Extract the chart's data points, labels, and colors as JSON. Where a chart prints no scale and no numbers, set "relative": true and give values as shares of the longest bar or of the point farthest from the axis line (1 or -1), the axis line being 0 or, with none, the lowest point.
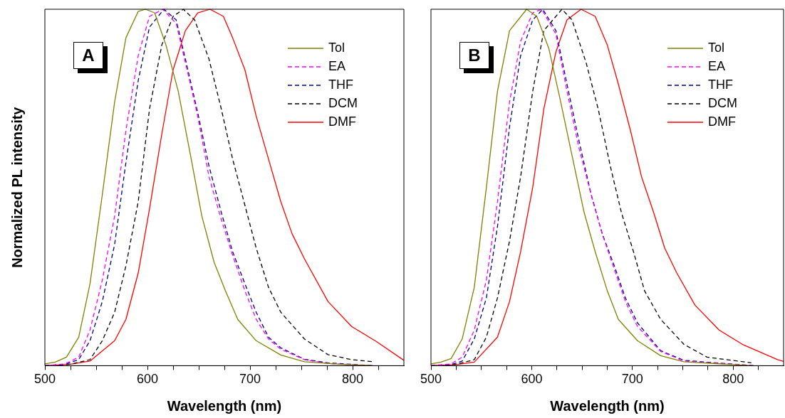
{
  "chart_data": [
    {
      "type": "line",
      "xlabel": "Wavelength (nm)",
      "ylabel": "Normalized PL intensity",
      "relative": true,
      "xlim": [
        500,
        850
      ],
      "xticks": [
        500,
        {
          "value": 525,
          "label": null
        },
        {
          "value": 550,
          "label": null
        },
        {
          "value": 575,
          "label": null
        },
        600,
        {
          "value": 625,
          "label": null
        },
        {
          "value": 650,
          "label": null
        },
        {
          "value": 675,
          "label": null
        },
        700,
        {
          "value": 725,
          "label": null
        },
        {
          "value": 750,
          "label": null
        },
        {
          "value": 775,
          "label": null
        },
        800,
        {
          "value": 825,
          "label": null
        }
      ],
      "grid": false,
      "legend": "top right",
      "marker": "none",
      "tick_labels": "x",
      "annotations": [
        "A"
      ],
      "series": [
        {
          "name": "Tol",
          "color": "#808000",
          "line_style": "solid",
          "x": [
            500,
            510,
            521,
            533,
            544,
            556,
            568,
            579,
            591,
            598,
            607,
            618,
            630,
            642,
            653,
            665,
            676,
            688,
            706,
            730,
            753,
            788,
            820
          ],
          "values": [
            0.005,
            0.01,
            0.024,
            0.08,
            0.23,
            0.48,
            0.74,
            0.92,
            0.994,
            1,
            0.99,
            0.9,
            0.77,
            0.59,
            0.42,
            0.29,
            0.21,
            0.13,
            0.07,
            0.03,
            0.011,
            0.004,
            0
          ]
        },
        {
          "name": "EA",
          "color": "#ff00ff",
          "line_style": "dashed",
          "x": [
            500,
            520,
            533,
            544,
            556,
            568,
            579,
            591,
            602,
            615,
            628,
            637,
            649,
            660,
            672,
            683,
            695,
            706,
            718,
            730,
            753,
            776,
            820
          ],
          "values": [
            0,
            0.005,
            0.024,
            0.1,
            0.24,
            0.42,
            0.66,
            0.87,
            0.98,
            1,
            0.96,
            0.85,
            0.7,
            0.53,
            0.41,
            0.31,
            0.21,
            0.13,
            0.075,
            0.046,
            0.017,
            0.006,
            0
          ]
        },
        {
          "name": "THF",
          "color": "#000080",
          "line_style": "dashed",
          "x": [
            500,
            520,
            533,
            544,
            556,
            568,
            579,
            591,
            602,
            616,
            628,
            637,
            649,
            660,
            672,
            683,
            695,
            706,
            718,
            730,
            753,
            776,
            820
          ],
          "values": [
            0,
            0.004,
            0.017,
            0.07,
            0.18,
            0.34,
            0.57,
            0.8,
            0.95,
            1,
            0.97,
            0.86,
            0.71,
            0.56,
            0.43,
            0.32,
            0.23,
            0.15,
            0.08,
            0.05,
            0.018,
            0.008,
            0
          ]
        },
        {
          "name": "DCM",
          "color": "#000000",
          "line_style": "dashed",
          "x": [
            500,
            525,
            544,
            556,
            568,
            579,
            591,
            602,
            614,
            625,
            635,
            646,
            660,
            672,
            683,
            695,
            706,
            718,
            730,
            753,
            776,
            799,
            820
          ],
          "values": [
            0,
            0.004,
            0.017,
            0.07,
            0.15,
            0.28,
            0.46,
            0.72,
            0.9,
            0.98,
            1,
            0.97,
            0.86,
            0.72,
            0.58,
            0.45,
            0.33,
            0.22,
            0.15,
            0.075,
            0.031,
            0.017,
            0.011
          ]
        },
        {
          "name": "DMF",
          "color": "#ff0000",
          "line_style": "solid",
          "x": [
            500,
            525,
            544,
            568,
            579,
            591,
            602,
            614,
            625,
            637,
            649,
            661,
            674,
            683,
            695,
            706,
            718,
            730,
            741,
            753,
            776,
            799,
            823,
            850
          ],
          "values": [
            0,
            0.004,
            0.013,
            0.07,
            0.13,
            0.26,
            0.44,
            0.65,
            0.83,
            0.94,
            0.99,
            1,
            0.98,
            0.92,
            0.83,
            0.7,
            0.58,
            0.46,
            0.37,
            0.3,
            0.18,
            0.11,
            0.068,
            0.015
          ]
        }
      ]
    },
    {
      "type": "line",
      "xlabel": "Wavelength (nm)",
      "relative": true,
      "xlim": [
        500,
        850
      ],
      "xticks": [
        500,
        {
          "value": 525,
          "label": null
        },
        {
          "value": 550,
          "label": null
        },
        {
          "value": 575,
          "label": null
        },
        600,
        {
          "value": 625,
          "label": null
        },
        {
          "value": 650,
          "label": null
        },
        {
          "value": 675,
          "label": null
        },
        700,
        {
          "value": 725,
          "label": null
        },
        {
          "value": 750,
          "label": null
        },
        {
          "value": 775,
          "label": null
        },
        800,
        {
          "value": 825,
          "label": null
        }
      ],
      "grid": false,
      "legend": "top right",
      "marker": "none",
      "tick_labels": "x",
      "annotations": [
        "B"
      ],
      "series": [
        {
          "name": "Tol",
          "color": "#808000",
          "line_style": "solid",
          "x": [
            500,
            510,
            520,
            531,
            543,
            555,
            566,
            578,
            595,
            605,
            617,
            628,
            640,
            652,
            663,
            675,
            686,
            705,
            728,
            751,
            818
          ],
          "values": [
            0.005,
            0.01,
            0.02,
            0.075,
            0.22,
            0.5,
            0.77,
            0.94,
            1,
            0.98,
            0.89,
            0.75,
            0.59,
            0.43,
            0.32,
            0.21,
            0.13,
            0.07,
            0.028,
            0.011,
            0
          ]
        },
        {
          "name": "EA",
          "color": "#ff00ff",
          "line_style": "dashed",
          "x": [
            500,
            520,
            531,
            543,
            555,
            566,
            578,
            589,
            601,
            610,
            624,
            635,
            647,
            659,
            670,
            682,
            693,
            705,
            728,
            751,
            821
          ],
          "values": [
            0,
            0.005,
            0.024,
            0.1,
            0.24,
            0.46,
            0.74,
            0.91,
            0.99,
            1,
            0.93,
            0.77,
            0.61,
            0.48,
            0.37,
            0.27,
            0.18,
            0.11,
            0.04,
            0.013,
            0
          ]
        },
        {
          "name": "THF",
          "color": "#000080",
          "line_style": "dashed",
          "x": [
            500,
            520,
            531,
            543,
            555,
            566,
            578,
            589,
            601,
            611,
            624,
            635,
            647,
            659,
            670,
            682,
            693,
            705,
            728,
            751,
            821
          ],
          "values": [
            0,
            0.003,
            0.013,
            0.075,
            0.19,
            0.39,
            0.67,
            0.87,
            0.97,
            1,
            0.94,
            0.79,
            0.63,
            0.48,
            0.37,
            0.28,
            0.19,
            0.12,
            0.042,
            0.015,
            0
          ]
        },
        {
          "name": "DCM",
          "color": "#000000",
          "line_style": "dashed",
          "x": [
            500,
            525,
            543,
            555,
            566,
            578,
            589,
            601,
            612,
            630,
            640,
            654,
            666,
            678,
            689,
            701,
            712,
            728,
            751,
            774,
            818
          ],
          "values": [
            0,
            0.004,
            0.017,
            0.08,
            0.19,
            0.35,
            0.53,
            0.77,
            0.94,
            1,
            0.97,
            0.85,
            0.72,
            0.56,
            0.43,
            0.32,
            0.21,
            0.13,
            0.06,
            0.024,
            0.008
          ]
        },
        {
          "name": "DMF",
          "color": "#ff0000",
          "line_style": "solid",
          "x": [
            500,
            525,
            543,
            566,
            578,
            589,
            601,
            612,
            624,
            635,
            649,
            663,
            675,
            686,
            698,
            709,
            721,
            732,
            744,
            762,
            786,
            809,
            844,
            850
          ],
          "values": [
            0,
            0.003,
            0.01,
            0.08,
            0.18,
            0.32,
            0.5,
            0.72,
            0.88,
            0.97,
            1,
            0.98,
            0.9,
            0.79,
            0.66,
            0.53,
            0.43,
            0.33,
            0.26,
            0.17,
            0.1,
            0.06,
            0.017,
            0.012
          ]
        }
      ]
    }
  ]
}
